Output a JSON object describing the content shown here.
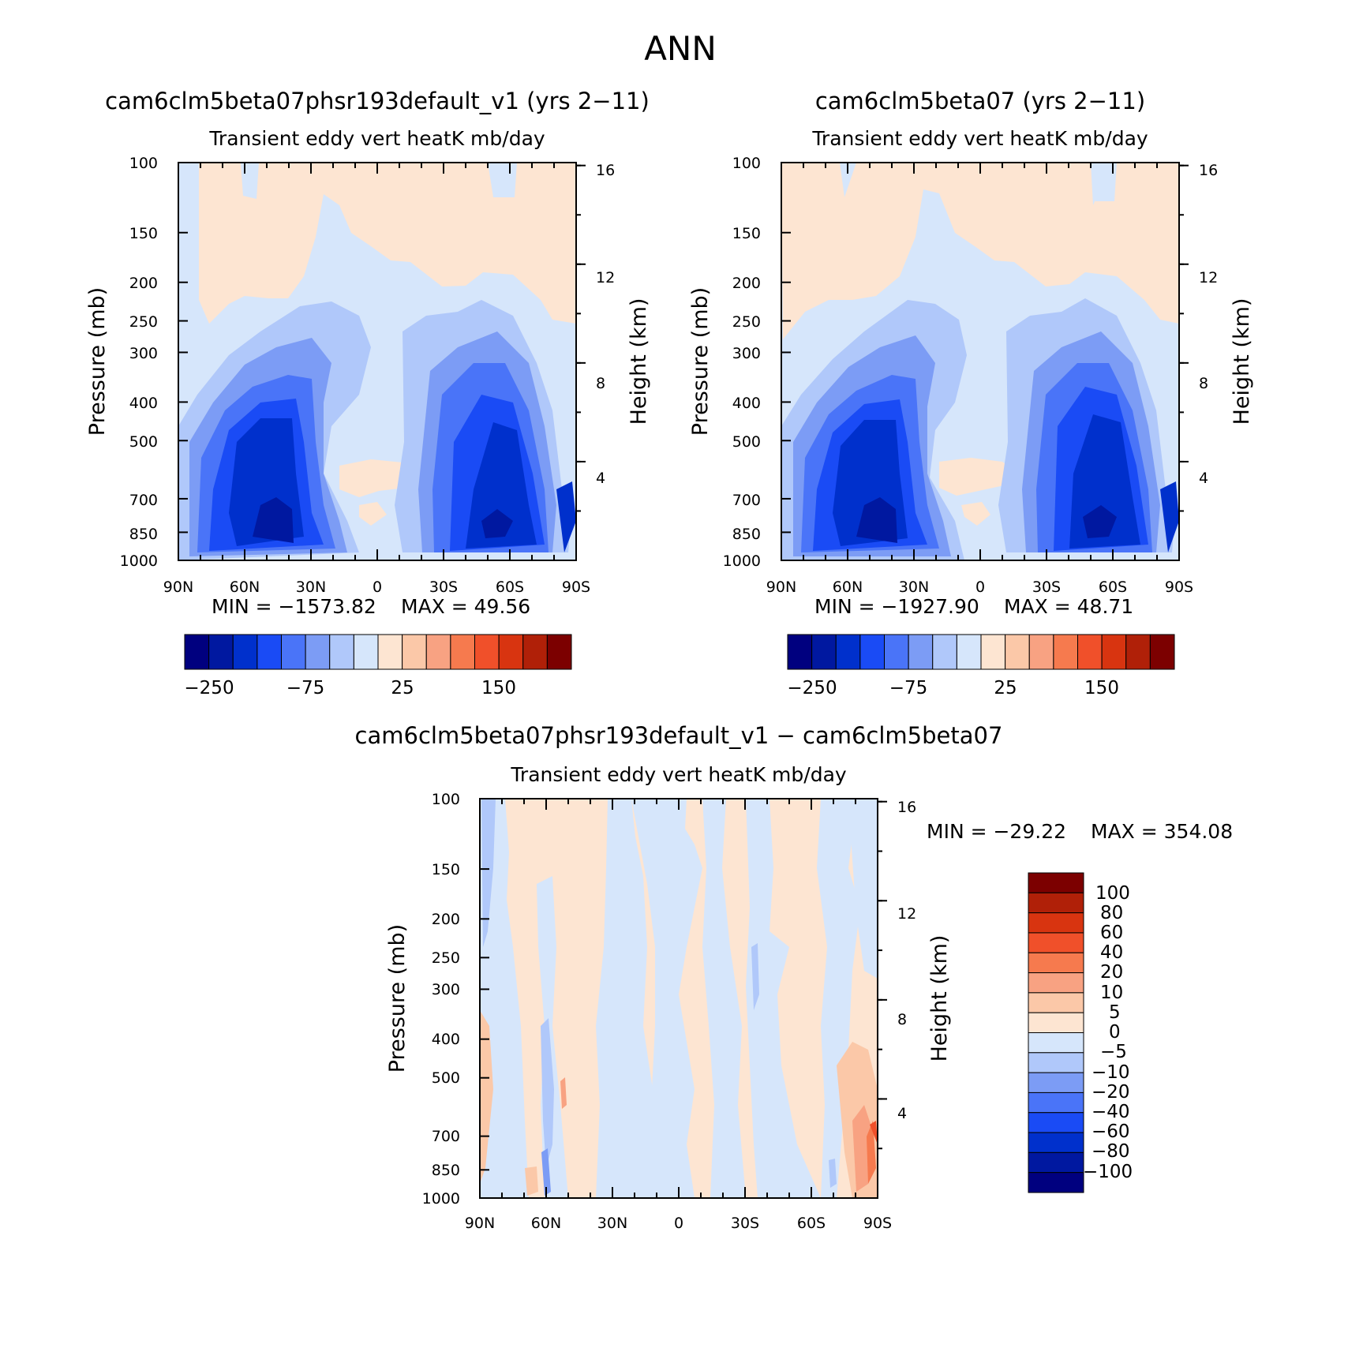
{
  "page_title": "ANN",
  "colors": {
    "contour_bar": [
      "#00007f",
      "#0018a0",
      "#0030cc",
      "#1a4bf5",
      "#4a74f8",
      "#7c9cf5",
      "#b0c8fa",
      "#d6e6fb",
      "#fde5d2",
      "#fbc8a8",
      "#f8a282",
      "#f67a4e",
      "#f0502a",
      "#d83410",
      "#b02008",
      "#7c0000"
    ],
    "diff_bar": [
      "#00007f",
      "#0018a0",
      "#0030cc",
      "#1a4bf5",
      "#4a74f8",
      "#7c9cf5",
      "#b0c8fa",
      "#d6e6fb",
      "#fde5d2",
      "#fbc8a8",
      "#f8a282",
      "#f67a4e",
      "#f0502a",
      "#d83410",
      "#b02008",
      "#7c0000"
    ]
  },
  "chart_data": [
    {
      "type": "heatmap",
      "title": "cam6clm5beta07phsr193default_v1 (yrs 2−11)",
      "subtitle": "Transient eddy vert heatK mb/day",
      "xlabel": "",
      "ylabel": "Pressure (mb)",
      "ylabel_right": "Height (km)",
      "x_ticks": [
        "90N",
        "60N",
        "30N",
        "0",
        "30S",
        "60S",
        "90S"
      ],
      "y_ticks": [
        "100",
        "150",
        "200",
        "250",
        "300",
        "400",
        "500",
        "700",
        "850",
        "1000"
      ],
      "y_right_ticks": [
        "16",
        "12",
        "8",
        "4"
      ],
      "ylim": [
        1000,
        100
      ],
      "y_scale": "log",
      "min_label": "MIN = −1573.82",
      "max_label": "MAX = 49.56",
      "min": -1573.82,
      "max": 49.56,
      "colorbar_labels": [
        "−250",
        "−75",
        "25",
        "150"
      ]
    },
    {
      "type": "heatmap",
      "title": "cam6clm5beta07 (yrs 2−11)",
      "subtitle": "Transient eddy vert heatK mb/day",
      "xlabel": "",
      "ylabel": "Pressure (mb)",
      "ylabel_right": "Height (km)",
      "x_ticks": [
        "90N",
        "60N",
        "30N",
        "0",
        "30S",
        "60S",
        "90S"
      ],
      "y_ticks": [
        "100",
        "150",
        "200",
        "250",
        "300",
        "400",
        "500",
        "700",
        "850",
        "1000"
      ],
      "y_right_ticks": [
        "16",
        "12",
        "8",
        "4"
      ],
      "ylim": [
        1000,
        100
      ],
      "y_scale": "log",
      "min_label": "MIN = −1927.90",
      "max_label": "MAX = 48.71",
      "min": -1927.9,
      "max": 48.71,
      "colorbar_labels": [
        "−250",
        "−75",
        "25",
        "150"
      ]
    },
    {
      "type": "heatmap",
      "title": "cam6clm5beta07phsr193default_v1 − cam6clm5beta07",
      "subtitle": "Transient eddy vert heatK mb/day",
      "xlabel": "",
      "ylabel": "Pressure (mb)",
      "ylabel_right": "Height (km)",
      "x_ticks": [
        "90N",
        "60N",
        "30N",
        "0",
        "30S",
        "60S",
        "90S"
      ],
      "y_ticks": [
        "100",
        "150",
        "200",
        "250",
        "300",
        "400",
        "500",
        "700",
        "850",
        "1000"
      ],
      "y_right_ticks": [
        "16",
        "12",
        "8",
        "4"
      ],
      "ylim": [
        1000,
        100
      ],
      "y_scale": "log",
      "min_label": "MIN = −29.22",
      "max_label": "MAX = 354.08",
      "min": -29.22,
      "max": 354.08,
      "colorbar_labels": [
        "100",
        "80",
        "60",
        "40",
        "20",
        "10",
        "5",
        "0",
        "−5",
        "−10",
        "−20",
        "−40",
        "−60",
        "−80",
        "−100"
      ]
    }
  ]
}
